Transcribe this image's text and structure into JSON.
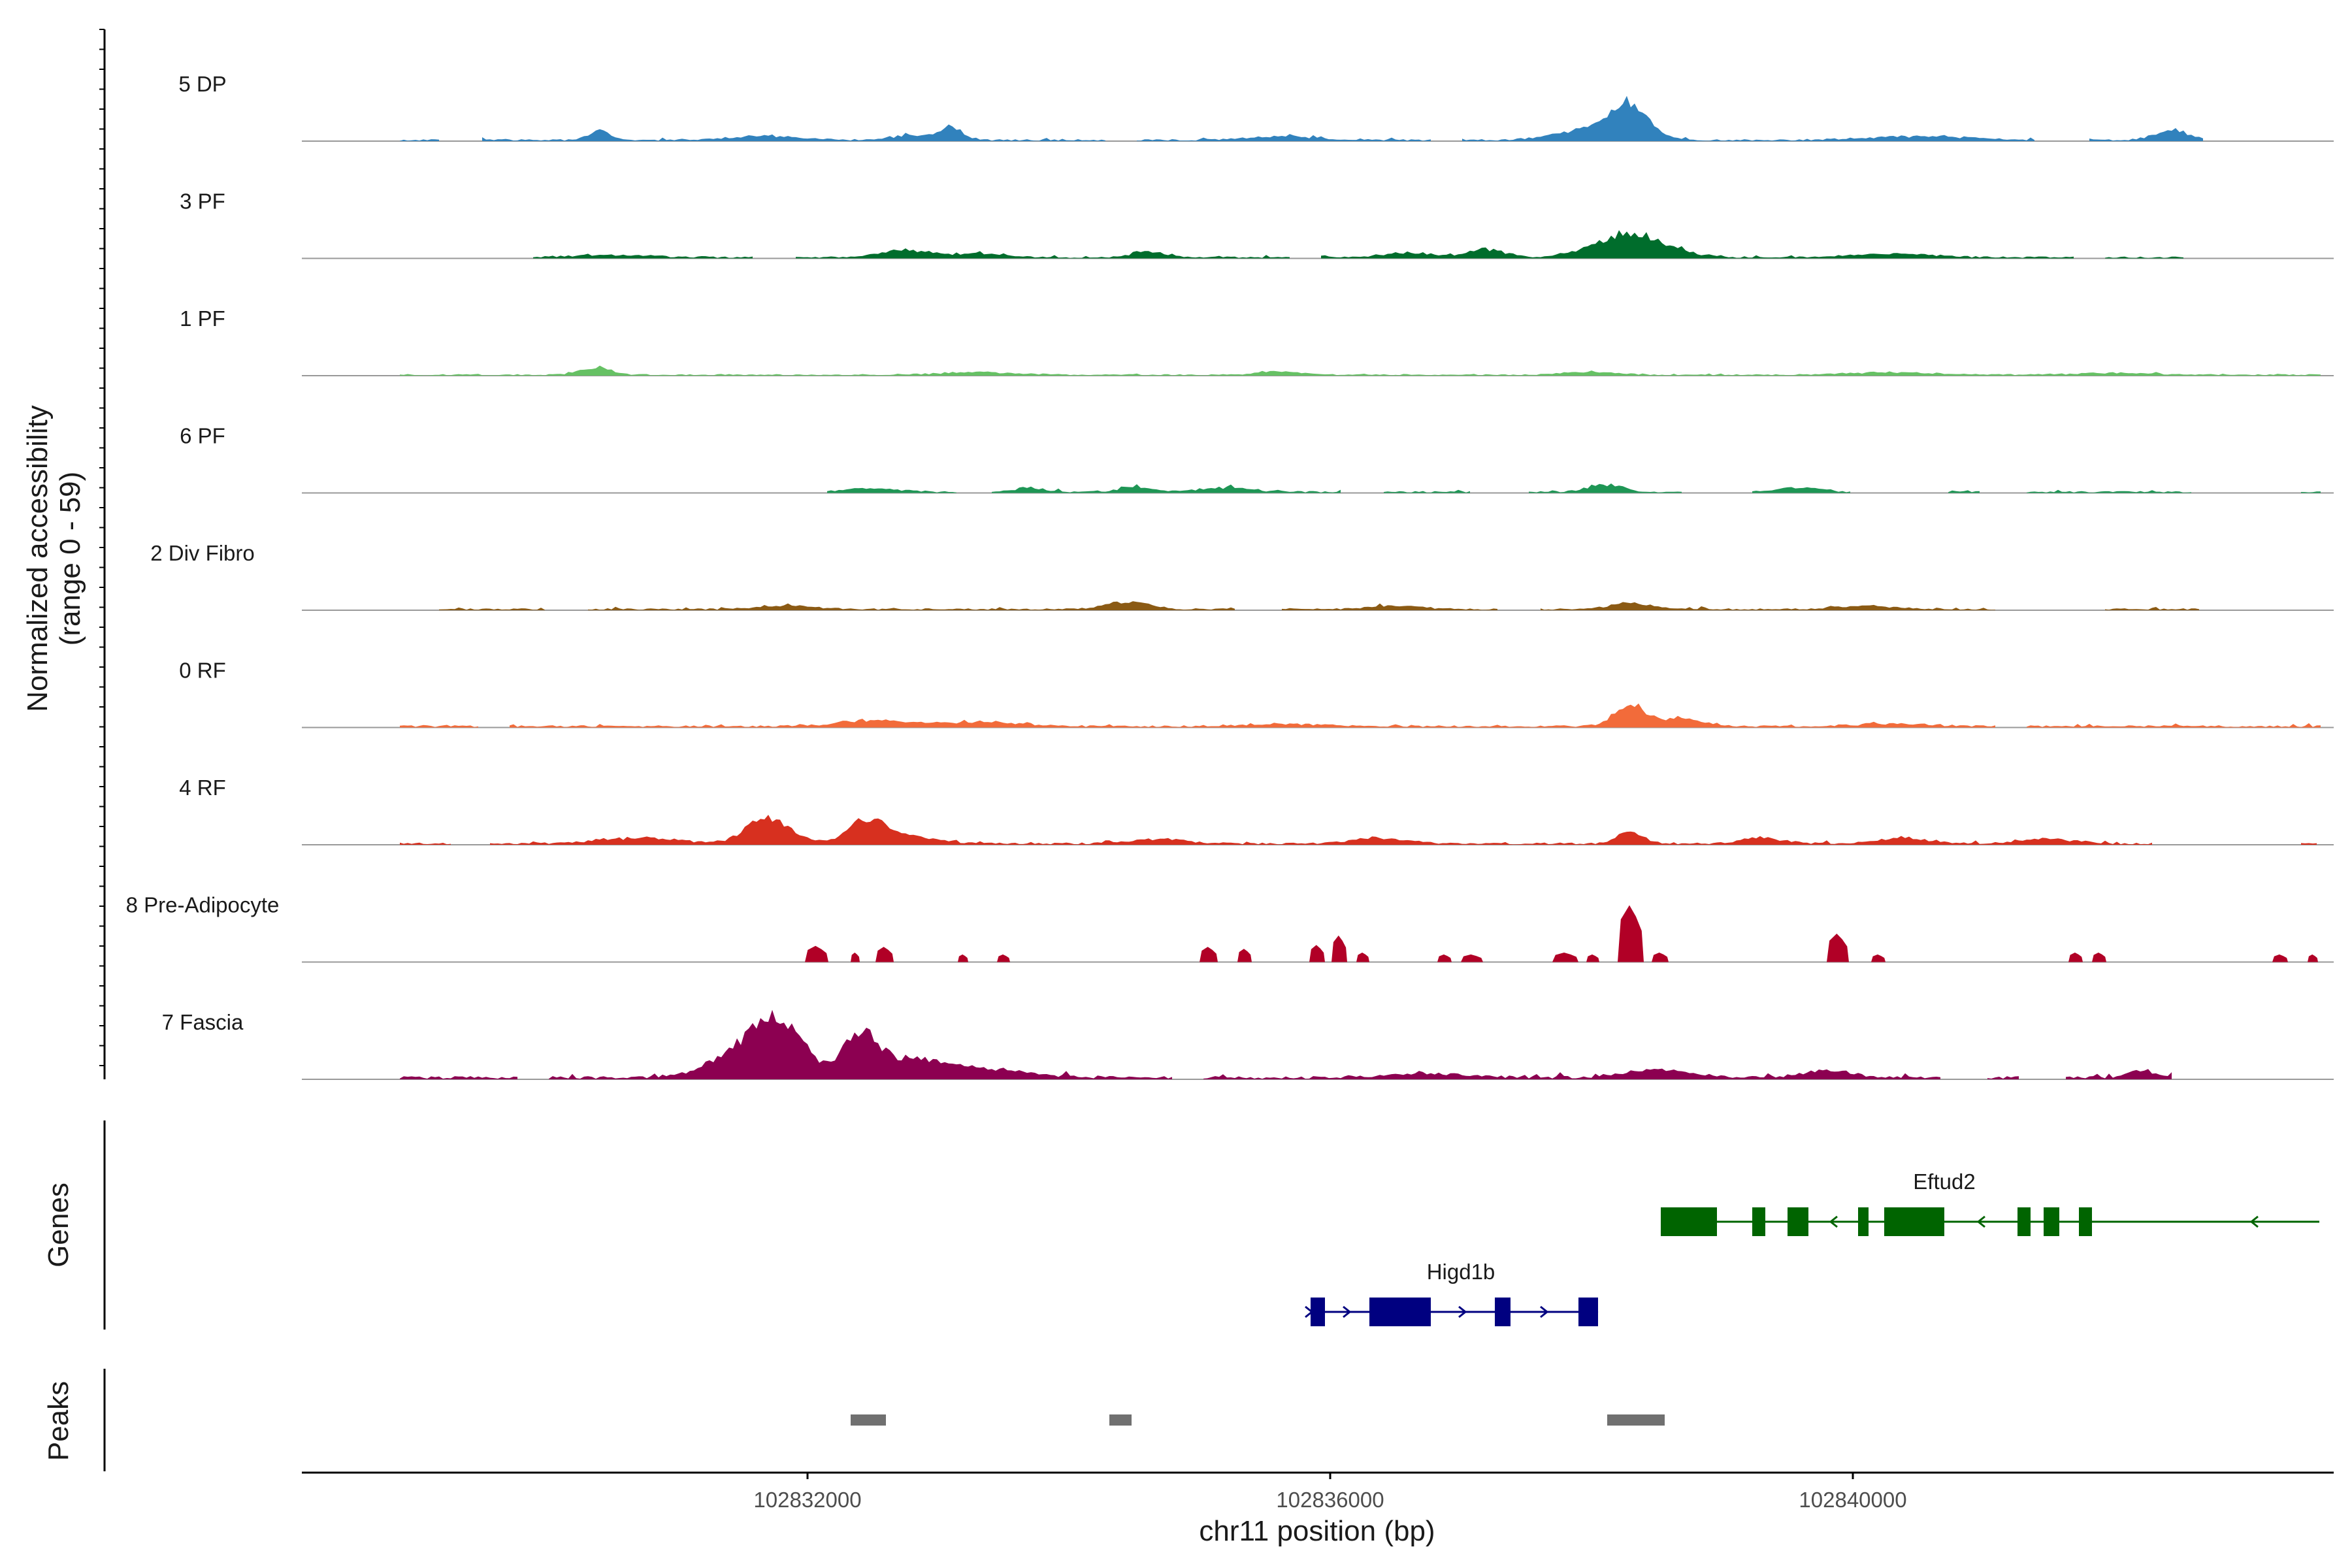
{
  "chart_data": {
    "type": "area",
    "title": "",
    "chromosome": "chr11",
    "xlabel": "chr11 position (bp)",
    "ylabel_line1": "Normalized accessibility",
    "ylabel_line2": "(range 0 - 59)",
    "y_range": [
      0,
      59
    ],
    "xlim": [
      102828130,
      102843680
    ],
    "x_ticks": [
      102832000,
      102836000,
      102840000
    ],
    "x_tick_labels": [
      "102832000",
      "102836000",
      "102840000"
    ],
    "grid": false,
    "coverage_tracks": [
      {
        "name": "5 DP",
        "color": "#3182bd",
        "baseline": 0.6,
        "jitter": 0.5,
        "extent": [
          102828880,
          102842700
        ],
        "peaks": [
          [
            102830400,
            4.8,
            80
          ],
          [
            102833100,
            7.0,
            80
          ],
          [
            102832800,
            2.8,
            150
          ],
          [
            102838300,
            18.0,
            140
          ],
          [
            102838000,
            6.0,
            250
          ],
          [
            102842450,
            5.0,
            130
          ],
          [
            102831700,
            2.2,
            250
          ],
          [
            102835600,
            2.0,
            250
          ],
          [
            102840500,
            2.0,
            400
          ]
        ],
        "gaps": [
          [
            102829200,
            102829500
          ],
          [
            102834300,
            102834500
          ],
          [
            102836800,
            102837000
          ],
          [
            102841400,
            102841800
          ]
        ]
      },
      {
        "name": "3 PF",
        "color": "#006d2c",
        "baseline": 0.6,
        "jitter": 0.4,
        "extent": [
          102829900,
          102842550
        ],
        "peaks": [
          [
            102838300,
            12.5,
            260
          ],
          [
            102837200,
            4.5,
            130
          ],
          [
            102832750,
            4.0,
            180
          ],
          [
            102834600,
            3.2,
            120
          ],
          [
            102836600,
            2.3,
            200
          ],
          [
            102833300,
            2.0,
            200
          ],
          [
            102840300,
            2.0,
            300
          ],
          [
            102830500,
            1.3,
            300
          ]
        ],
        "gaps": [
          [
            102831600,
            102831900
          ],
          [
            102835700,
            102835900
          ],
          [
            102841700,
            102841900
          ]
        ]
      },
      {
        "name": "1 PF",
        "color": "#66c164",
        "baseline": 0.5,
        "jitter": 0.3,
        "extent": [
          102828880,
          102843600
        ],
        "peaks": [
          [
            102830380,
            3.8,
            110
          ],
          [
            102835600,
            1.8,
            150
          ],
          [
            102838000,
            1.6,
            200
          ],
          [
            102833300,
            1.3,
            300
          ],
          [
            102840300,
            1.3,
            300
          ],
          [
            102842000,
            1.0,
            300
          ]
        ],
        "gaps": []
      },
      {
        "name": "6 PF",
        "color": "#1e9655",
        "baseline": 0.6,
        "jitter": 0.6,
        "extent": [
          102832150,
          102843580
        ],
        "peaks": [
          [
            102838100,
            4.0,
            130
          ],
          [
            102834500,
            2.6,
            120
          ],
          [
            102833700,
            2.2,
            120
          ],
          [
            102835200,
            2.2,
            200
          ],
          [
            102839600,
            2.5,
            150
          ],
          [
            102832500,
            2.0,
            200
          ]
        ],
        "gaps": [
          [
            102833150,
            102833400
          ],
          [
            102836100,
            102836400
          ],
          [
            102837100,
            102837500
          ],
          [
            102838700,
            102839200
          ],
          [
            102840000,
            102840700
          ],
          [
            102841000,
            102841300
          ],
          [
            102842600,
            102843400
          ]
        ]
      },
      {
        "name": "2 Div Fibro",
        "color": "#8b5a14",
        "baseline": 0.6,
        "jitter": 0.6,
        "extent": [
          102829160,
          102842650
        ],
        "peaks": [
          [
            102834450,
            3.6,
            160
          ],
          [
            102838300,
            3.8,
            140
          ],
          [
            102831850,
            1.8,
            200
          ],
          [
            102836500,
            1.8,
            200
          ],
          [
            102840100,
            1.8,
            200
          ]
        ],
        "gaps": [
          [
            102830000,
            102830300
          ],
          [
            102835300,
            102835600
          ],
          [
            102837300,
            102837600
          ],
          [
            102841100,
            102841900
          ]
        ]
      },
      {
        "name": "0 RF",
        "color": "#f26b3a",
        "baseline": 0.7,
        "jitter": 0.5,
        "extent": [
          102828880,
          102843580
        ],
        "peaks": [
          [
            102838300,
            12.0,
            120
          ],
          [
            102838700,
            4.0,
            150
          ],
          [
            102832500,
            3.2,
            250
          ],
          [
            102833300,
            2.4,
            300
          ],
          [
            102835600,
            1.2,
            300
          ],
          [
            102840300,
            1.2,
            300
          ]
        ],
        "gaps": [
          [
            102829500,
            102829700
          ],
          [
            102841100,
            102841300
          ]
        ]
      },
      {
        "name": "4 RF",
        "color": "#d7301f",
        "baseline": 0.7,
        "jitter": 0.6,
        "extent": [
          102828880,
          102843560
        ],
        "peaks": [
          [
            102831700,
            14.0,
            160
          ],
          [
            102832450,
            12.0,
            150
          ],
          [
            102832800,
            3.5,
            200
          ],
          [
            102838300,
            6.0,
            100
          ],
          [
            102836400,
            3.0,
            200
          ],
          [
            102839300,
            3.0,
            150
          ],
          [
            102840400,
            2.8,
            200
          ],
          [
            102841500,
            2.5,
            200
          ],
          [
            102834700,
            2.5,
            200
          ],
          [
            102830700,
            3.0,
            300
          ]
        ],
        "gaps": [
          [
            102829300,
            102829550
          ],
          [
            102842300,
            102843400
          ]
        ]
      },
      {
        "name": "8 Pre-Adipocyte",
        "color": "#b10026",
        "blocks": [
          [
            102831980,
            102832160,
            8.5
          ],
          [
            102832330,
            102832400,
            5
          ],
          [
            102832520,
            102832660,
            8
          ],
          [
            102833150,
            102833230,
            4
          ],
          [
            102833450,
            102833550,
            4
          ],
          [
            102835000,
            102835140,
            8
          ],
          [
            102835290,
            102835400,
            7
          ],
          [
            102835840,
            102835960,
            9
          ],
          [
            102836010,
            102836130,
            14
          ],
          [
            102836200,
            102836300,
            5
          ],
          [
            102836820,
            102836930,
            4
          ],
          [
            102837000,
            102837170,
            4
          ],
          [
            102837700,
            102837900,
            5
          ],
          [
            102837960,
            102838060,
            4
          ],
          [
            102838200,
            102838400,
            30
          ],
          [
            102838460,
            102838590,
            5
          ],
          [
            102839800,
            102839970,
            15
          ],
          [
            102840140,
            102840250,
            4
          ],
          [
            102841650,
            102841760,
            5
          ],
          [
            102841830,
            102841940,
            5
          ],
          [
            102843210,
            102843330,
            4
          ],
          [
            102843480,
            102843560,
            4
          ]
        ]
      },
      {
        "name": "7 Fascia",
        "color": "#8c0051",
        "baseline": 1.0,
        "jitter": 1.0,
        "extent": [
          102828880,
          102842450
        ],
        "peaks": [
          [
            102831750,
            28.0,
            200
          ],
          [
            102831450,
            9.0,
            250
          ],
          [
            102832400,
            22.0,
            130
          ],
          [
            102832800,
            10.0,
            250
          ],
          [
            102833400,
            4.0,
            300
          ],
          [
            102838500,
            4.0,
            250
          ],
          [
            102839800,
            3.5,
            200
          ],
          [
            102842200,
            4.0,
            100
          ],
          [
            102836800,
            2.0,
            300
          ]
        ],
        "gaps": [
          [
            102829800,
            102830000
          ],
          [
            102834800,
            102835000
          ],
          [
            102840700,
            102841000
          ],
          [
            102841300,
            102841600
          ]
        ]
      }
    ],
    "genes": [
      {
        "name": "Eftud2",
        "strand": "-",
        "color": "#006400",
        "start": 102838530,
        "end": 102843570,
        "exons": [
          [
            102838530,
            102838960
          ],
          [
            102839230,
            102839330
          ],
          [
            102839500,
            102839660
          ],
          [
            102840040,
            102840120
          ],
          [
            102840240,
            102840700
          ],
          [
            102841260,
            102841360
          ],
          [
            102841460,
            102841580
          ],
          [
            102841730,
            102841830
          ]
        ]
      },
      {
        "name": "Higd1b",
        "strand": "+",
        "color": "#000080",
        "start": 102835850,
        "end": 102838050,
        "exons": [
          [
            102835850,
            102835960
          ],
          [
            102836300,
            102836770
          ],
          [
            102837260,
            102837380
          ],
          [
            102837900,
            102838050
          ]
        ]
      }
    ],
    "peak_regions": [
      [
        102832330,
        102832600
      ],
      [
        102834310,
        102834480
      ],
      [
        102838120,
        102838560
      ]
    ],
    "panel_labels": {
      "genes": "Genes",
      "peaks": "Peaks"
    },
    "colors": {
      "baseline": "#999999",
      "peak_region": "#707070",
      "axis": "#000000"
    }
  }
}
